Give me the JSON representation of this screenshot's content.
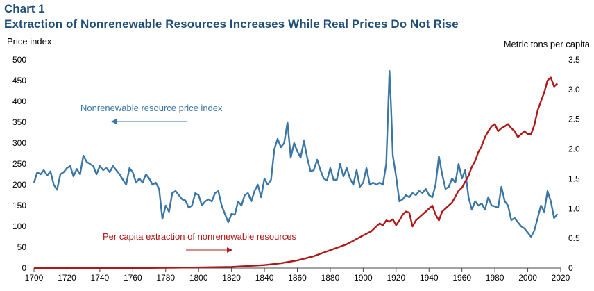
{
  "header": {
    "chart_label": "Chart 1",
    "title": "Extraction of Nonrenewable Resources Increases While Real Prices Do Not Rise"
  },
  "colors": {
    "price": "#3a76a6",
    "extraction": "#b01818",
    "title": "#1f4e79"
  },
  "chart_data": {
    "type": "line",
    "title": "Extraction of Nonrenewable Resources Increases While Real Prices Do Not Rise",
    "xlabel": "",
    "ylabel": "Price index",
    "y2label": "Metric tons per capita",
    "xlim": [
      1700,
      2020
    ],
    "ylim": [
      0,
      500
    ],
    "y2lim": [
      0,
      3.5
    ],
    "xticks": [
      1700,
      1720,
      1740,
      1760,
      1780,
      1800,
      1820,
      1840,
      1860,
      1880,
      1900,
      1920,
      1940,
      1960,
      1980,
      2000,
      2020
    ],
    "yticks": [
      0,
      50,
      100,
      150,
      200,
      250,
      300,
      350,
      400,
      450,
      500
    ],
    "y2ticks": [
      "0",
      "0.5",
      "1.0",
      "1.5",
      "2.0",
      "2.5",
      "3.0",
      "3.5"
    ],
    "y2tick_values": [
      0,
      0.5,
      1.0,
      1.5,
      2.0,
      2.5,
      3.0,
      3.5
    ],
    "annotations": [
      {
        "text": "Nonrenewable resource price index",
        "arrow": "left",
        "series": "price"
      },
      {
        "text": "Per capita extraction of nonrenewable resources",
        "arrow": "right",
        "series": "extraction"
      }
    ],
    "series": [
      {
        "name": "Nonrenewable resource price index",
        "axis": "left",
        "points": [
          [
            1700,
            205
          ],
          [
            1702,
            230
          ],
          [
            1704,
            225
          ],
          [
            1706,
            235
          ],
          [
            1708,
            222
          ],
          [
            1710,
            232
          ],
          [
            1712,
            200
          ],
          [
            1714,
            188
          ],
          [
            1716,
            225
          ],
          [
            1718,
            230
          ],
          [
            1720,
            240
          ],
          [
            1722,
            245
          ],
          [
            1724,
            220
          ],
          [
            1726,
            238
          ],
          [
            1728,
            225
          ],
          [
            1730,
            270
          ],
          [
            1732,
            255
          ],
          [
            1734,
            250
          ],
          [
            1736,
            245
          ],
          [
            1738,
            225
          ],
          [
            1740,
            245
          ],
          [
            1742,
            235
          ],
          [
            1744,
            240
          ],
          [
            1746,
            230
          ],
          [
            1748,
            245
          ],
          [
            1750,
            235
          ],
          [
            1752,
            225
          ],
          [
            1754,
            212
          ],
          [
            1756,
            200
          ],
          [
            1758,
            240
          ],
          [
            1760,
            230
          ],
          [
            1762,
            205
          ],
          [
            1764,
            215
          ],
          [
            1766,
            205
          ],
          [
            1768,
            225
          ],
          [
            1770,
            215
          ],
          [
            1772,
            200
          ],
          [
            1774,
            205
          ],
          [
            1776,
            190
          ],
          [
            1778,
            118
          ],
          [
            1780,
            150
          ],
          [
            1782,
            135
          ],
          [
            1784,
            180
          ],
          [
            1786,
            185
          ],
          [
            1788,
            175
          ],
          [
            1790,
            165
          ],
          [
            1792,
            162
          ],
          [
            1794,
            145
          ],
          [
            1796,
            150
          ],
          [
            1798,
            180
          ],
          [
            1800,
            175
          ],
          [
            1802,
            150
          ],
          [
            1804,
            160
          ],
          [
            1806,
            165
          ],
          [
            1808,
            160
          ],
          [
            1810,
            180
          ],
          [
            1812,
            185
          ],
          [
            1814,
            150
          ],
          [
            1816,
            130
          ],
          [
            1818,
            110
          ],
          [
            1820,
            130
          ],
          [
            1822,
            128
          ],
          [
            1824,
            160
          ],
          [
            1826,
            150
          ],
          [
            1828,
            175
          ],
          [
            1830,
            180
          ],
          [
            1832,
            160
          ],
          [
            1834,
            185
          ],
          [
            1836,
            200
          ],
          [
            1838,
            170
          ],
          [
            1840,
            215
          ],
          [
            1842,
            200
          ],
          [
            1844,
            212
          ],
          [
            1846,
            285
          ],
          [
            1848,
            310
          ],
          [
            1850,
            290
          ],
          [
            1852,
            300
          ],
          [
            1854,
            350
          ],
          [
            1856,
            265
          ],
          [
            1858,
            300
          ],
          [
            1860,
            280
          ],
          [
            1862,
            265
          ],
          [
            1864,
            305
          ],
          [
            1866,
            265
          ],
          [
            1868,
            232
          ],
          [
            1870,
            235
          ],
          [
            1872,
            260
          ],
          [
            1874,
            235
          ],
          [
            1876,
            215
          ],
          [
            1878,
            210
          ],
          [
            1880,
            240
          ],
          [
            1882,
            212
          ],
          [
            1884,
            212
          ],
          [
            1886,
            250
          ],
          [
            1888,
            220
          ],
          [
            1890,
            240
          ],
          [
            1892,
            215
          ],
          [
            1894,
            200
          ],
          [
            1896,
            235
          ],
          [
            1898,
            195
          ],
          [
            1900,
            205
          ],
          [
            1902,
            240
          ],
          [
            1904,
            200
          ],
          [
            1906,
            205
          ],
          [
            1908,
            200
          ],
          [
            1910,
            205
          ],
          [
            1912,
            200
          ],
          [
            1914,
            250
          ],
          [
            1916,
            473
          ],
          [
            1917,
            380
          ],
          [
            1918,
            270
          ],
          [
            1920,
            220
          ],
          [
            1922,
            160
          ],
          [
            1924,
            165
          ],
          [
            1926,
            175
          ],
          [
            1928,
            170
          ],
          [
            1930,
            180
          ],
          [
            1932,
            175
          ],
          [
            1934,
            185
          ],
          [
            1936,
            180
          ],
          [
            1938,
            190
          ],
          [
            1940,
            175
          ],
          [
            1942,
            170
          ],
          [
            1944,
            200
          ],
          [
            1946,
            268
          ],
          [
            1948,
            225
          ],
          [
            1950,
            190
          ],
          [
            1952,
            195
          ],
          [
            1954,
            215
          ],
          [
            1956,
            205
          ],
          [
            1958,
            250
          ],
          [
            1960,
            215
          ],
          [
            1962,
            235
          ],
          [
            1964,
            170
          ],
          [
            1966,
            140
          ],
          [
            1968,
            160
          ],
          [
            1970,
            150
          ],
          [
            1972,
            155
          ],
          [
            1974,
            140
          ],
          [
            1976,
            170
          ],
          [
            1978,
            150
          ],
          [
            1980,
            148
          ],
          [
            1982,
            145
          ],
          [
            1984,
            195
          ],
          [
            1986,
            160
          ],
          [
            1988,
            150
          ],
          [
            1990,
            115
          ],
          [
            1992,
            120
          ],
          [
            1994,
            110
          ],
          [
            1996,
            100
          ],
          [
            1998,
            95
          ],
          [
            2000,
            85
          ],
          [
            2002,
            75
          ],
          [
            2004,
            90
          ],
          [
            2006,
            120
          ],
          [
            2008,
            150
          ],
          [
            2010,
            135
          ],
          [
            2012,
            185
          ],
          [
            2014,
            160
          ],
          [
            2016,
            120
          ],
          [
            2018,
            130
          ]
        ]
      },
      {
        "name": "Per capita extraction of nonrenewable resources",
        "axis": "right",
        "points": [
          [
            1700,
            0
          ],
          [
            1760,
            0
          ],
          [
            1780,
            0.005
          ],
          [
            1800,
            0.01
          ],
          [
            1820,
            0.02
          ],
          [
            1840,
            0.05
          ],
          [
            1850,
            0.08
          ],
          [
            1860,
            0.13
          ],
          [
            1870,
            0.2
          ],
          [
            1880,
            0.3
          ],
          [
            1890,
            0.4
          ],
          [
            1900,
            0.55
          ],
          [
            1905,
            0.62
          ],
          [
            1908,
            0.7
          ],
          [
            1910,
            0.75
          ],
          [
            1912,
            0.72
          ],
          [
            1914,
            0.8
          ],
          [
            1916,
            0.78
          ],
          [
            1918,
            0.82
          ],
          [
            1920,
            0.72
          ],
          [
            1922,
            0.8
          ],
          [
            1924,
            0.9
          ],
          [
            1926,
            0.95
          ],
          [
            1928,
            0.93
          ],
          [
            1930,
            0.7
          ],
          [
            1932,
            0.8
          ],
          [
            1934,
            0.85
          ],
          [
            1936,
            0.9
          ],
          [
            1938,
            0.95
          ],
          [
            1940,
            1.0
          ],
          [
            1942,
            1.05
          ],
          [
            1944,
            0.9
          ],
          [
            1946,
            0.8
          ],
          [
            1948,
            0.95
          ],
          [
            1950,
            1.0
          ],
          [
            1952,
            1.05
          ],
          [
            1954,
            1.1
          ],
          [
            1956,
            1.2
          ],
          [
            1958,
            1.3
          ],
          [
            1960,
            1.35
          ],
          [
            1962,
            1.45
          ],
          [
            1964,
            1.55
          ],
          [
            1966,
            1.7
          ],
          [
            1968,
            1.8
          ],
          [
            1970,
            1.95
          ],
          [
            1972,
            2.05
          ],
          [
            1974,
            2.2
          ],
          [
            1976,
            2.3
          ],
          [
            1978,
            2.38
          ],
          [
            1980,
            2.42
          ],
          [
            1982,
            2.3
          ],
          [
            1984,
            2.35
          ],
          [
            1986,
            2.38
          ],
          [
            1988,
            2.42
          ],
          [
            1990,
            2.35
          ],
          [
            1992,
            2.3
          ],
          [
            1994,
            2.2
          ],
          [
            1996,
            2.25
          ],
          [
            1998,
            2.3
          ],
          [
            2000,
            2.25
          ],
          [
            2002,
            2.25
          ],
          [
            2004,
            2.4
          ],
          [
            2006,
            2.65
          ],
          [
            2008,
            2.8
          ],
          [
            2010,
            2.95
          ],
          [
            2012,
            3.15
          ],
          [
            2014,
            3.2
          ],
          [
            2016,
            3.05
          ],
          [
            2018,
            3.1
          ]
        ]
      }
    ]
  }
}
